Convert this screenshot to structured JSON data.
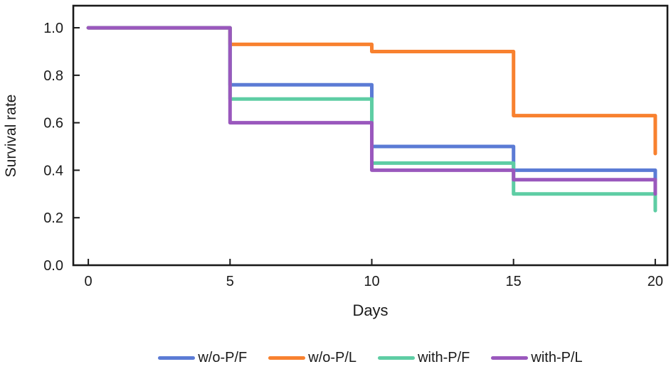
{
  "chart_data": {
    "type": "line",
    "subtype": "step-survival-curve",
    "title": "",
    "xlabel": "Days",
    "ylabel": "Survival rate",
    "x_ticks": [
      0,
      5,
      10,
      15,
      20
    ],
    "y_ticks": [
      "0.0",
      "0.2",
      "0.4",
      "0.6",
      "0.8",
      "1.0"
    ],
    "xlim": [
      -0.53,
      20.43
    ],
    "ylim": [
      0,
      1.093
    ],
    "grid": false,
    "legend_position": "bottom",
    "axis_color": "#1a1a1a",
    "background_color": "#ffffff",
    "series": [
      {
        "name": "w/o-P/F",
        "color": "#5b7bd5",
        "points": [
          [
            0,
            1.0
          ],
          [
            5,
            1.0
          ],
          [
            5,
            0.76
          ],
          [
            10,
            0.76
          ],
          [
            10,
            0.5
          ],
          [
            15,
            0.5
          ],
          [
            15,
            0.4
          ],
          [
            20,
            0.4
          ],
          [
            20,
            0.36
          ]
        ]
      },
      {
        "name": "w/o-P/L",
        "color": "#f8812f",
        "points": [
          [
            0,
            1.0
          ],
          [
            5,
            1.0
          ],
          [
            5,
            0.93
          ],
          [
            10,
            0.93
          ],
          [
            10,
            0.9
          ],
          [
            15,
            0.9
          ],
          [
            15,
            0.63
          ],
          [
            20,
            0.63
          ],
          [
            20,
            0.47
          ]
        ]
      },
      {
        "name": "with-P/F",
        "color": "#5ecda4",
        "points": [
          [
            0,
            1.0
          ],
          [
            5,
            1.0
          ],
          [
            5,
            0.7
          ],
          [
            10,
            0.7
          ],
          [
            10,
            0.43
          ],
          [
            15,
            0.43
          ],
          [
            15,
            0.3
          ],
          [
            20,
            0.3
          ],
          [
            20,
            0.23
          ]
        ]
      },
      {
        "name": "with-P/L",
        "color": "#9a58bd",
        "points": [
          [
            0,
            1.0
          ],
          [
            5,
            1.0
          ],
          [
            5,
            0.6
          ],
          [
            10,
            0.6
          ],
          [
            10,
            0.4
          ],
          [
            15,
            0.4
          ],
          [
            15,
            0.36
          ],
          [
            20,
            0.36
          ],
          [
            20,
            0.3
          ]
        ]
      }
    ]
  }
}
